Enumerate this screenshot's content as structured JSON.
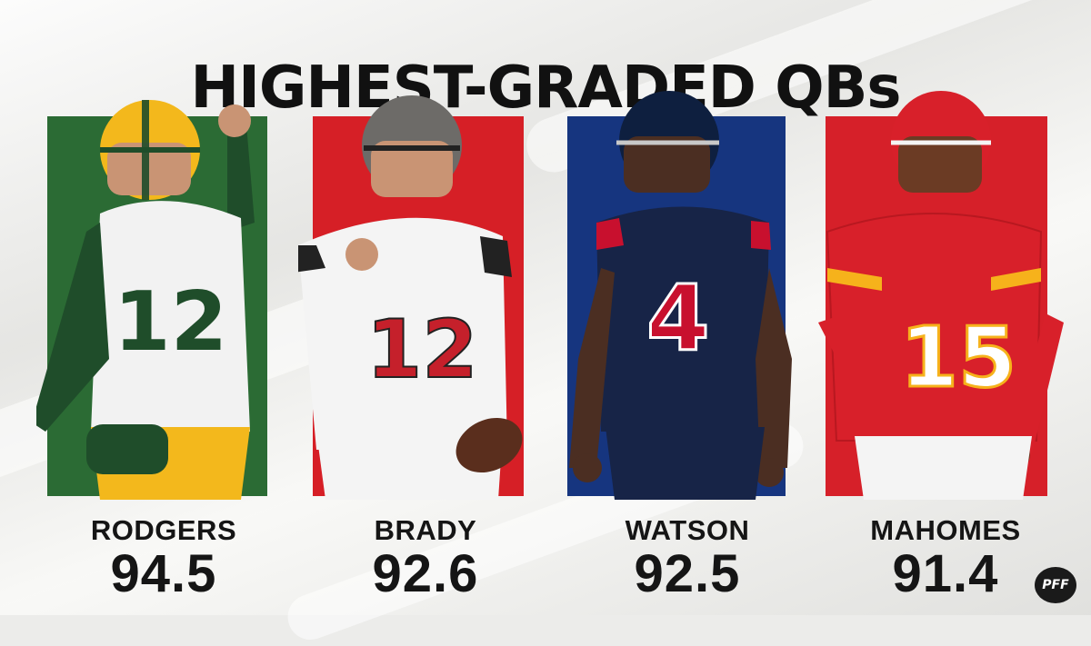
{
  "title": "HIGHEST-GRADED QBs",
  "players": [
    {
      "name": "RODGERS",
      "grade": "94.5",
      "jersey_number": "12",
      "panel_color": "#2b6b34",
      "jersey_color": "#f2f2f2",
      "trim_color": "#1f4d2a",
      "helmet_color": "#f3b81c",
      "number_color": "#1f4d2a"
    },
    {
      "name": "BRADY",
      "grade": "92.6",
      "jersey_number": "12",
      "panel_color": "#d61f26",
      "jersey_color": "#f4f4f4",
      "trim_color": "#222222",
      "helmet_color": "#6d6b68",
      "number_color": "#c5202b"
    },
    {
      "name": "WATSON",
      "grade": "92.5",
      "jersey_number": "4",
      "panel_color": "#16357f",
      "jersey_color": "#172447",
      "trim_color": "#c8102e",
      "helmet_color": "#0e1f3f",
      "number_color": "#c8102e"
    },
    {
      "name": "MAHOMES",
      "grade": "91.4",
      "jersey_number": "15",
      "panel_color": "#d62029",
      "jersey_color": "#d8202a",
      "trim_color": "#f6b21b",
      "helmet_color": "#d8202a",
      "number_color": "#ffffff"
    }
  ],
  "logo_text": "PFF"
}
